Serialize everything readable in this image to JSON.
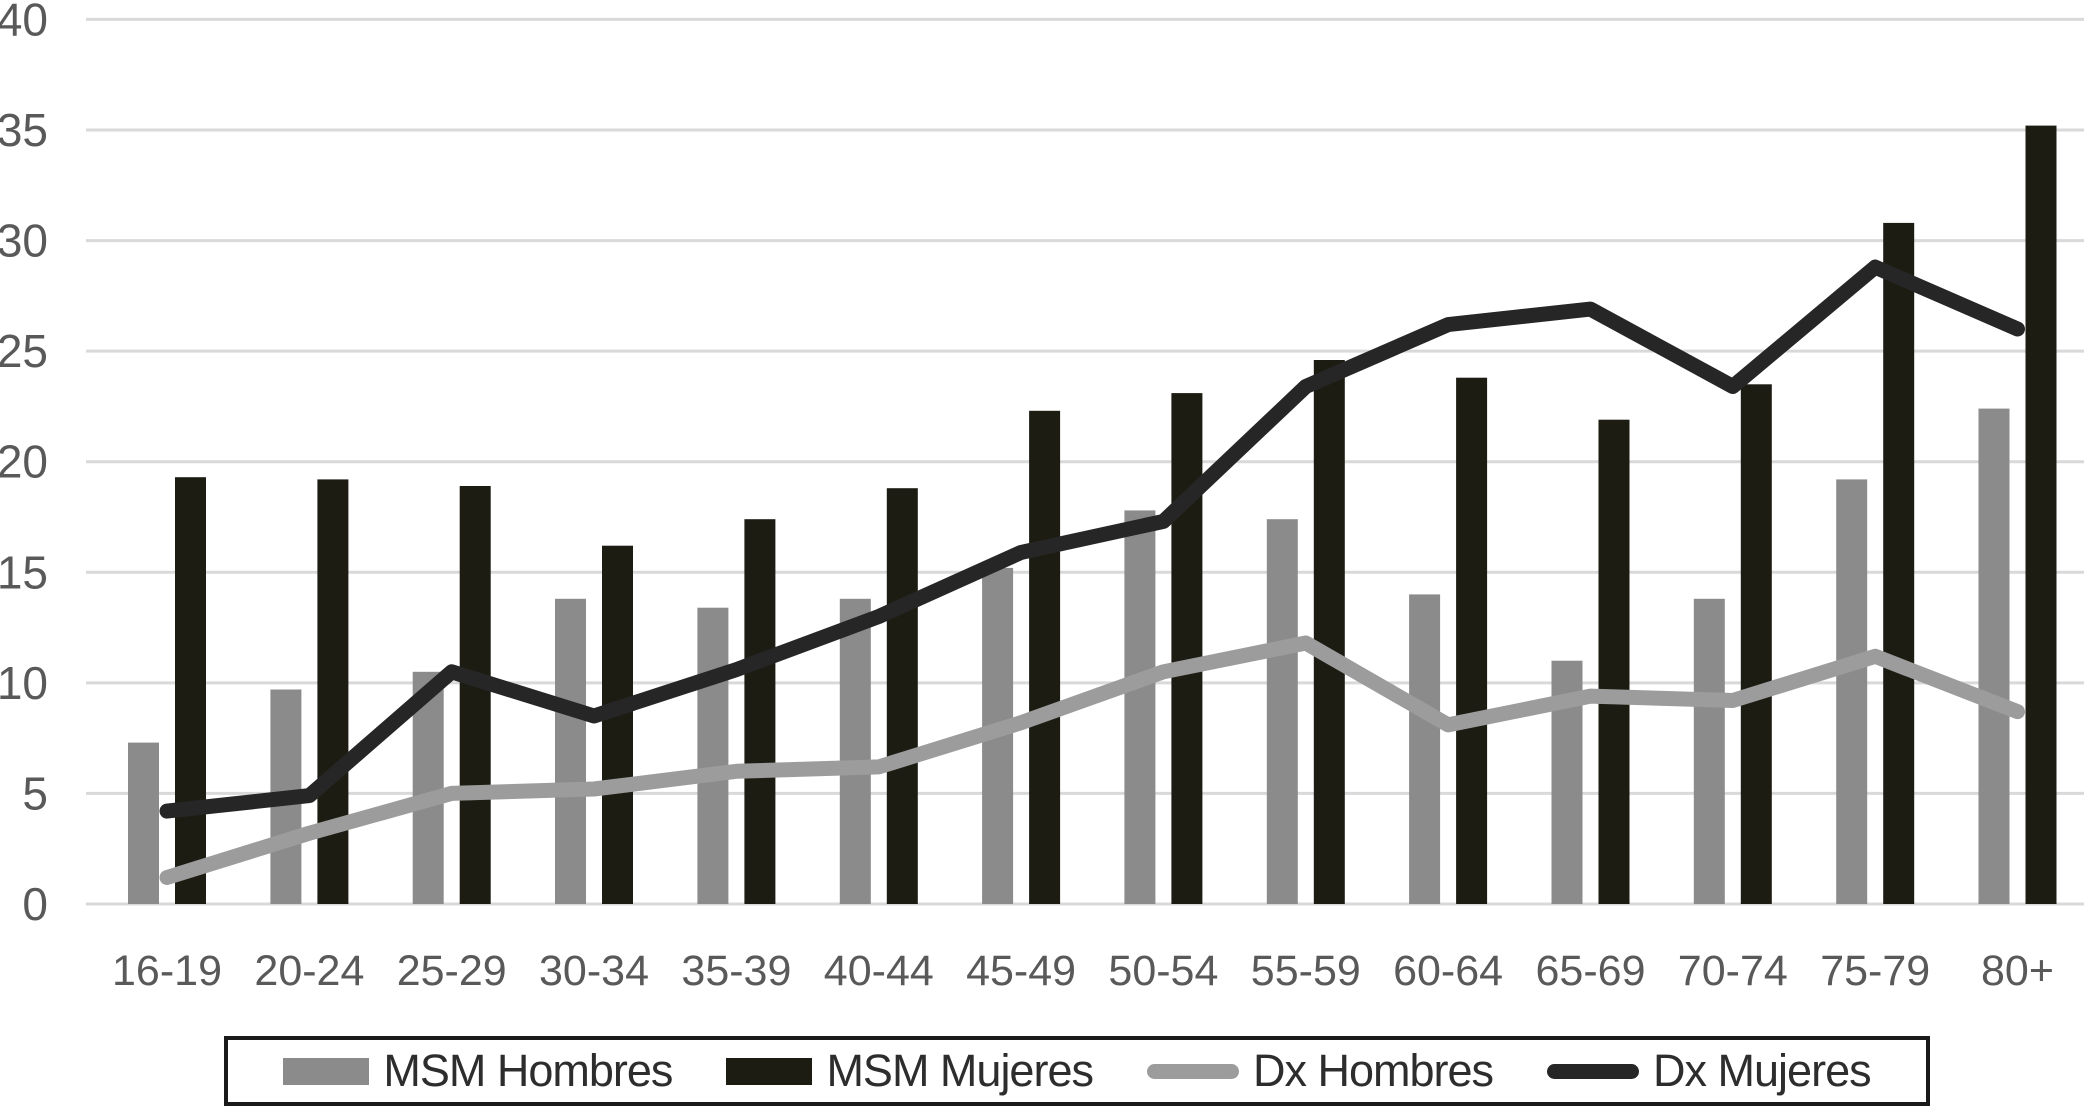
{
  "chart_data": {
    "type": "bar",
    "subtype": "grouped-bars-with-overlaid-lines",
    "title": "",
    "xlabel": "",
    "ylabel": "",
    "ylim": [
      0,
      40
    ],
    "yticks": [
      0,
      5,
      10,
      15,
      20,
      25,
      30,
      35,
      40
    ],
    "grid": true,
    "gridline_color": "#d9d9d9",
    "tick_label_color": "#595959",
    "legend_position": "bottom",
    "categories": [
      "16-19",
      "20-24",
      "25-29",
      "30-34",
      "35-39",
      "40-44",
      "45-49",
      "50-54",
      "55-59",
      "60-64",
      "65-69",
      "70-74",
      "75-79",
      "80+"
    ],
    "series": [
      {
        "name": "MSM Hombres",
        "kind": "bar",
        "color": "#8b8b8b",
        "values": [
          7.3,
          9.7,
          10.5,
          13.8,
          13.4,
          13.8,
          15.2,
          17.8,
          17.4,
          14.0,
          11.0,
          13.8,
          19.2,
          22.4
        ]
      },
      {
        "name": "MSM Mujeres",
        "kind": "bar",
        "color": "#1d1c13",
        "values": [
          19.3,
          19.2,
          18.9,
          16.2,
          17.4,
          18.8,
          22.3,
          23.1,
          24.6,
          23.8,
          21.9,
          23.5,
          30.8,
          35.2
        ]
      },
      {
        "name": "Dx Hombres",
        "kind": "line",
        "color": "#9c9c9c",
        "values": [
          1.2,
          3.2,
          5.0,
          5.2,
          6.0,
          6.2,
          8.2,
          10.5,
          11.8,
          8.1,
          9.4,
          9.2,
          11.2,
          8.7
        ]
      },
      {
        "name": "Dx Mujeres",
        "kind": "line",
        "color": "#262626",
        "values": [
          4.2,
          4.9,
          10.5,
          8.5,
          10.6,
          13.0,
          15.9,
          17.3,
          23.4,
          26.2,
          26.9,
          23.4,
          28.8,
          26.0
        ]
      }
    ]
  }
}
